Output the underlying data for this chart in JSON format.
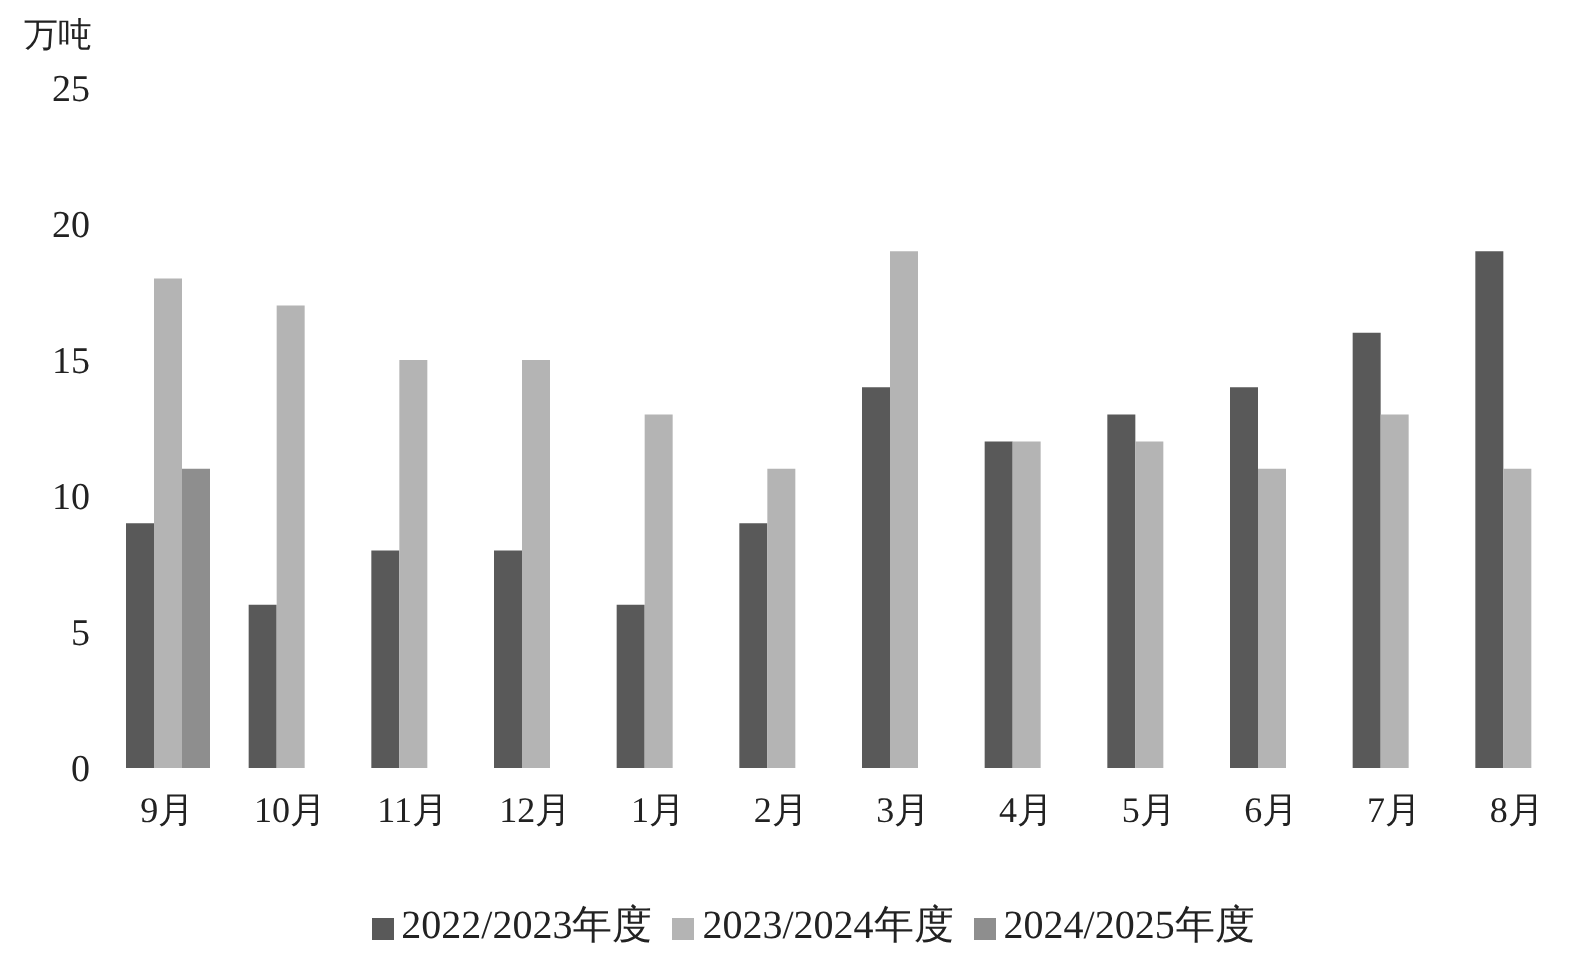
{
  "chart_data": {
    "type": "bar",
    "ylabel": "万吨",
    "categories": [
      "9月",
      "10月",
      "11月",
      "12月",
      "1月",
      "2月",
      "3月",
      "4月",
      "5月",
      "6月",
      "7月",
      "8月"
    ],
    "series": [
      {
        "name": "2022/2023年度",
        "color": "#595959",
        "values": [
          9,
          6,
          8,
          8,
          6,
          9,
          14,
          12,
          13,
          14,
          16,
          19
        ]
      },
      {
        "name": "2023/2024年度",
        "color": "#b4b4b4",
        "values": [
          18,
          17,
          15,
          15,
          13,
          11,
          19,
          12,
          12,
          11,
          13,
          11
        ]
      },
      {
        "name": "2024/2025年度",
        "color": "#8e8e8e",
        "values": [
          11,
          null,
          null,
          null,
          null,
          null,
          null,
          null,
          null,
          null,
          null,
          null
        ]
      }
    ],
    "ylim": [
      0,
      25
    ],
    "yticks": [
      0,
      5,
      10,
      15,
      20,
      25
    ],
    "legend": "bottom"
  }
}
